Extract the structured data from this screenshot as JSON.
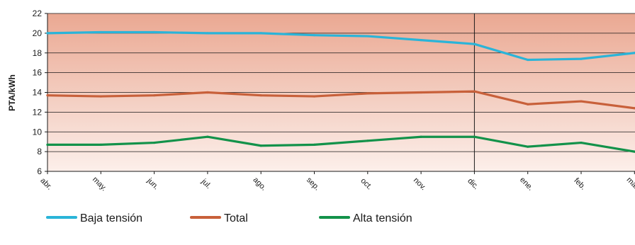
{
  "chart_data": {
    "type": "line",
    "ylabel": "PTA/kWh",
    "xlabel": "",
    "title": "",
    "ylim": [
      6,
      22
    ],
    "yticks": [
      6,
      8,
      10,
      12,
      14,
      16,
      18,
      20,
      22
    ],
    "categories": [
      "abr.",
      "may.",
      "jun.",
      "jul.",
      "ago.",
      "sep.",
      "oct.",
      "nov.",
      "dic.",
      "ene.",
      "feb.",
      "mar."
    ],
    "divider_after": "dic.",
    "grid": true,
    "legend_position": "bottom",
    "series": [
      {
        "name": "Baja tensión",
        "color": "#2ab4d8",
        "values": [
          20.0,
          20.1,
          20.1,
          20.0,
          20.0,
          19.8,
          19.7,
          19.3,
          18.9,
          17.3,
          17.4,
          18.0
        ]
      },
      {
        "name": "Total",
        "color": "#c8603a",
        "values": [
          13.7,
          13.6,
          13.7,
          14.0,
          13.7,
          13.6,
          13.9,
          14.0,
          14.1,
          12.8,
          13.1,
          12.4
        ]
      },
      {
        "name": "Alta tensión",
        "color": "#13924a",
        "values": [
          8.7,
          8.7,
          8.9,
          9.5,
          8.6,
          8.7,
          9.1,
          9.5,
          9.5,
          8.5,
          8.9,
          8.0
        ]
      }
    ],
    "background_gradient": [
      "#eaa892",
      "#fcefea"
    ]
  }
}
